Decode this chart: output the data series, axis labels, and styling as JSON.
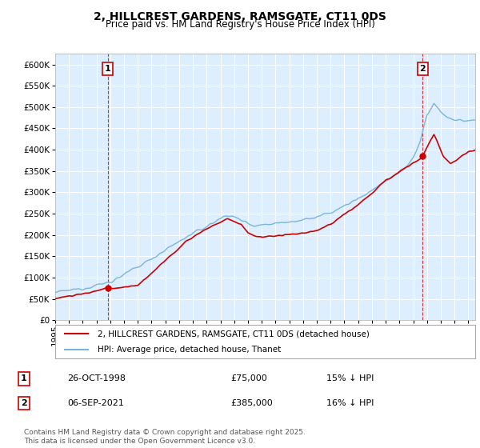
{
  "title": "2, HILLCREST GARDENS, RAMSGATE, CT11 0DS",
  "subtitle": "Price paid vs. HM Land Registry's House Price Index (HPI)",
  "ytick_values": [
    0,
    50000,
    100000,
    150000,
    200000,
    250000,
    300000,
    350000,
    400000,
    450000,
    500000,
    550000,
    600000
  ],
  "ylim": [
    0,
    625000
  ],
  "xlim_start": 1995.0,
  "xlim_end": 2025.5,
  "hpi_color": "#7ab5d8",
  "price_color": "#cc0000",
  "grid_color": "#c8d8e8",
  "bg_color": "#ffffff",
  "plot_bg_color": "#ddeeff",
  "sale1_x": 1998.82,
  "sale1_y": 75000,
  "sale2_x": 2021.68,
  "sale2_y": 385000,
  "legend_label1": "2, HILLCREST GARDENS, RAMSGATE, CT11 0DS (detached house)",
  "legend_label2": "HPI: Average price, detached house, Thanet",
  "table_row1": [
    "1",
    "26-OCT-1998",
    "£75,000",
    "15% ↓ HPI"
  ],
  "table_row2": [
    "2",
    "06-SEP-2021",
    "£385,000",
    "16% ↓ HPI"
  ],
  "footnote": "Contains HM Land Registry data © Crown copyright and database right 2025.\nThis data is licensed under the Open Government Licence v3.0.",
  "title_fontsize": 10,
  "subtitle_fontsize": 8.5,
  "tick_fontsize": 7.5,
  "legend_fontsize": 7.5,
  "table_fontsize": 8,
  "footnote_fontsize": 6.5
}
